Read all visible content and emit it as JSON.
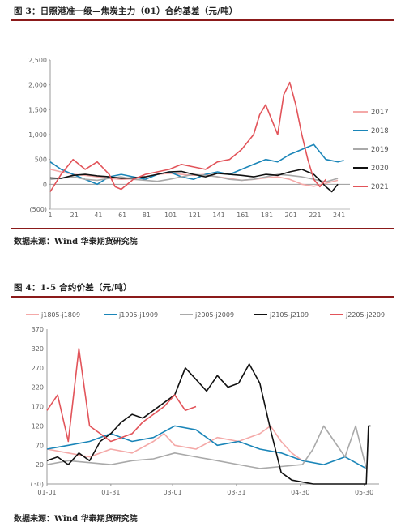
{
  "figure3": {
    "title": "图 3：日照港准一级—焦炭主力（01）合约基差（元/吨）",
    "source": "数据来源：Wind 华泰期货研究院"
  },
  "figure4": {
    "title": "图 4：1-5 合约价差（元/吨）",
    "source": "数据来源：Wind 华泰期货研究院"
  },
  "chart_data": [
    {
      "type": "line",
      "id": "fig3",
      "title": "日照港准一级—焦炭主力（01）合约基差（元/吨）",
      "ylim": [
        -500,
        2500
      ],
      "yticks": [
        2500,
        2000,
        1500,
        1000,
        500,
        0,
        -500
      ],
      "ytick_labels": [
        "2,500",
        "2,000",
        "1,500",
        "1,000",
        "500",
        "0",
        "(500)"
      ],
      "xlim": [
        1,
        250
      ],
      "xticks": [
        1,
        21,
        41,
        61,
        81,
        101,
        121,
        141,
        161,
        181,
        201,
        221,
        241
      ],
      "legend_position": "right",
      "series": [
        {
          "name": "2017",
          "color": "#f4a9a8",
          "x": [
            1,
            10,
            20,
            30,
            40,
            50,
            60,
            70,
            80,
            90,
            100,
            110,
            120,
            130,
            140,
            150,
            160,
            170,
            180,
            190,
            200,
            210,
            220,
            230,
            240
          ],
          "y": [
            300,
            250,
            200,
            180,
            150,
            120,
            100,
            110,
            150,
            200,
            220,
            200,
            180,
            200,
            150,
            120,
            80,
            100,
            130,
            150,
            100,
            0,
            -40,
            20,
            80
          ]
        },
        {
          "name": "2018",
          "color": "#1a85b8",
          "x": [
            1,
            10,
            20,
            30,
            40,
            50,
            60,
            70,
            80,
            90,
            100,
            110,
            120,
            130,
            140,
            150,
            160,
            170,
            180,
            190,
            200,
            210,
            220,
            230,
            240,
            245
          ],
          "y": [
            450,
            300,
            200,
            100,
            0,
            150,
            200,
            150,
            100,
            200,
            250,
            150,
            100,
            200,
            250,
            200,
            300,
            400,
            500,
            450,
            600,
            700,
            800,
            500,
            450,
            480
          ]
        },
        {
          "name": "2019",
          "color": "#a9a9a9",
          "x": [
            1,
            10,
            20,
            30,
            40,
            50,
            60,
            70,
            80,
            90,
            100,
            110,
            120,
            130,
            140,
            150,
            160,
            170,
            180,
            190,
            200,
            210,
            220,
            230,
            240
          ],
          "y": [
            100,
            120,
            150,
            100,
            80,
            120,
            150,
            100,
            80,
            60,
            100,
            150,
            200,
            180,
            150,
            100,
            80,
            100,
            150,
            200,
            180,
            150,
            100,
            50,
            120
          ]
        },
        {
          "name": "2020",
          "color": "#111111",
          "x": [
            1,
            10,
            20,
            30,
            40,
            50,
            60,
            70,
            80,
            90,
            100,
            110,
            120,
            130,
            140,
            150,
            160,
            170,
            180,
            190,
            200,
            210,
            220,
            225,
            230,
            235,
            240
          ],
          "y": [
            130,
            120,
            180,
            200,
            170,
            150,
            120,
            130,
            150,
            200,
            250,
            260,
            200,
            150,
            220,
            200,
            180,
            150,
            200,
            180,
            250,
            300,
            200,
            80,
            -50,
            -150,
            0
          ]
        },
        {
          "name": "2021",
          "color": "#e2545a",
          "x": [
            1,
            10,
            15,
            20,
            30,
            40,
            50,
            55,
            60,
            70,
            80,
            90,
            100,
            110,
            120,
            130,
            140,
            150,
            160,
            170,
            175,
            180,
            185,
            190,
            195,
            200,
            205,
            210,
            215,
            220,
            225,
            230
          ],
          "y": [
            -150,
            200,
            350,
            500,
            300,
            450,
            200,
            -50,
            -100,
            100,
            200,
            250,
            300,
            400,
            350,
            300,
            450,
            500,
            700,
            1000,
            1400,
            1600,
            1300,
            1000,
            1800,
            2050,
            1600,
            1000,
            500,
            100,
            -50,
            100
          ]
        }
      ]
    },
    {
      "type": "line",
      "id": "fig4",
      "title": "1-5 合约价差（元/吨）",
      "ylim": [
        -30,
        370
      ],
      "yticks": [
        370,
        320,
        270,
        220,
        170,
        120,
        70,
        20,
        -30
      ],
      "ytick_labels": [
        "370",
        "320",
        "270",
        "220",
        "170",
        "120",
        "70",
        "20",
        "(30)"
      ],
      "xticks": [
        "01-01",
        "01-31",
        "03-01",
        "03-31",
        "04-30",
        "05-30"
      ],
      "xtick_days": [
        0,
        30,
        59,
        89,
        119,
        149
      ],
      "legend_position": "top",
      "series": [
        {
          "name": "j1805-j1809",
          "color": "#f4a9a8",
          "x": [
            0,
            10,
            20,
            30,
            40,
            50,
            55,
            60,
            70,
            80,
            90,
            100,
            105,
            110,
            115,
            120
          ],
          "y": [
            60,
            50,
            40,
            60,
            50,
            80,
            100,
            70,
            60,
            90,
            80,
            100,
            120,
            80,
            50,
            30
          ]
        },
        {
          "name": "j1905-j1909",
          "color": "#1a85b8",
          "x": [
            0,
            10,
            20,
            30,
            40,
            50,
            60,
            70,
            80,
            90,
            100,
            110,
            120,
            130,
            140,
            150
          ],
          "y": [
            60,
            70,
            80,
            100,
            80,
            90,
            120,
            110,
            70,
            80,
            60,
            50,
            30,
            20,
            40,
            10
          ]
        },
        {
          "name": "j2005-j2009",
          "color": "#a9a9a9",
          "x": [
            0,
            10,
            20,
            30,
            40,
            50,
            60,
            70,
            80,
            90,
            100,
            110,
            120,
            125,
            130,
            135,
            140,
            145,
            150
          ],
          "y": [
            20,
            30,
            25,
            20,
            30,
            35,
            50,
            40,
            30,
            20,
            10,
            15,
            20,
            60,
            120,
            80,
            40,
            120,
            10
          ]
        },
        {
          "name": "j2105-j2109",
          "color": "#111111",
          "x": [
            0,
            5,
            10,
            15,
            20,
            25,
            30,
            35,
            40,
            45,
            50,
            55,
            60,
            65,
            70,
            75,
            80,
            85,
            90,
            95,
            100,
            105,
            110,
            115,
            120,
            125,
            130,
            135,
            140,
            150,
            151,
            152
          ],
          "y": [
            30,
            40,
            20,
            50,
            30,
            80,
            100,
            130,
            150,
            140,
            160,
            180,
            200,
            270,
            240,
            210,
            250,
            220,
            230,
            280,
            230,
            110,
            0,
            -20,
            -25,
            -30,
            -30,
            -30,
            -30,
            -30,
            120,
            120
          ]
        },
        {
          "name": "j2205-j2209",
          "color": "#e2545a",
          "x": [
            0,
            5,
            10,
            15,
            20,
            25,
            30,
            35,
            40,
            45,
            50,
            55,
            60,
            65,
            70
          ],
          "y": [
            160,
            200,
            80,
            320,
            120,
            100,
            80,
            90,
            100,
            130,
            150,
            170,
            200,
            160,
            170
          ]
        }
      ]
    }
  ]
}
